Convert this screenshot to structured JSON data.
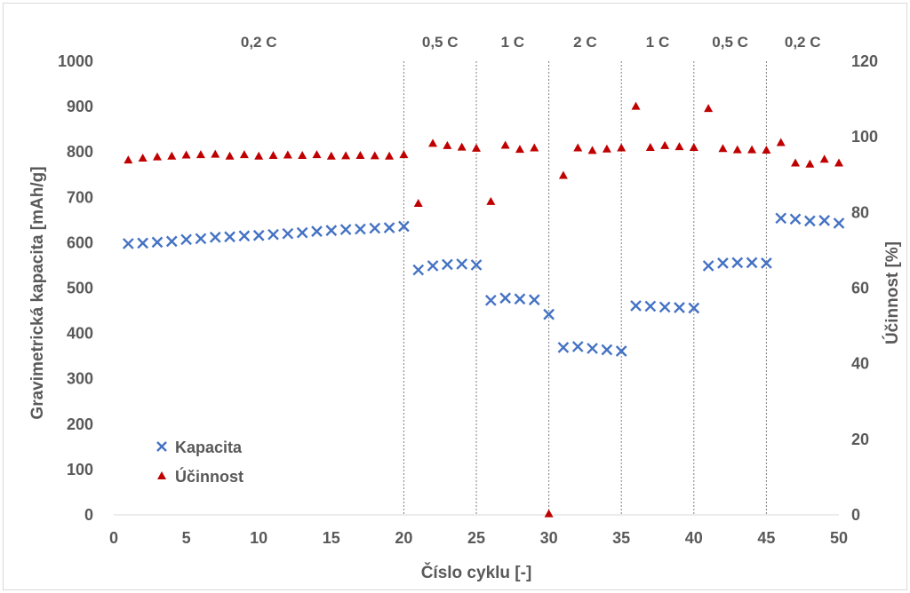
{
  "chart_data": {
    "type": "scatter",
    "title": "",
    "xlabel": "Číslo cyklu [-]",
    "ylabel": "Gravimetrická kapacita [mAh/g]",
    "y2label": "Účinnost [%]",
    "xlim": [
      0,
      50
    ],
    "ylim": [
      0,
      1000
    ],
    "y2lim": [
      0,
      120
    ],
    "xticks": [
      0,
      5,
      10,
      15,
      20,
      25,
      30,
      35,
      40,
      45,
      50
    ],
    "yticks": [
      0,
      100,
      200,
      300,
      400,
      500,
      600,
      700,
      800,
      900,
      1000
    ],
    "y2ticks": [
      0,
      20,
      40,
      60,
      80,
      100,
      120
    ],
    "grid": false,
    "legend_position": "bottom-left",
    "regions": [
      {
        "label": "0,2 C",
        "from": 0,
        "to": 20
      },
      {
        "label": "0,5 C",
        "from": 20,
        "to": 25
      },
      {
        "label": "1 C",
        "from": 25,
        "to": 30
      },
      {
        "label": "2 C",
        "from": 30,
        "to": 35
      },
      {
        "label": "1 C",
        "from": 35,
        "to": 40
      },
      {
        "label": "0,5 C",
        "from": 40,
        "to": 45
      },
      {
        "label": "0,2 C",
        "from": 45,
        "to": 50
      }
    ],
    "series": [
      {
        "name": "Kapacita",
        "axis": "left",
        "marker": "x",
        "color": "#4472c4",
        "x": [
          1,
          2,
          3,
          4,
          5,
          6,
          7,
          8,
          9,
          10,
          11,
          12,
          13,
          14,
          15,
          16,
          17,
          18,
          19,
          20,
          21,
          22,
          23,
          24,
          25,
          26,
          27,
          28,
          29,
          30,
          31,
          32,
          33,
          34,
          35,
          36,
          37,
          38,
          39,
          40,
          41,
          42,
          43,
          44,
          45,
          46,
          47,
          48,
          49,
          50
        ],
        "y": [
          598,
          599,
          601,
          603,
          607,
          609,
          612,
          613,
          615,
          616,
          618,
          620,
          622,
          625,
          627,
          629,
          630,
          632,
          633,
          636,
          540,
          549,
          552,
          553,
          551,
          473,
          478,
          476,
          474,
          442,
          369,
          371,
          367,
          364,
          361,
          461,
          460,
          458,
          457,
          456,
          549,
          555,
          556,
          556,
          555,
          654,
          652,
          648,
          649,
          643
        ]
      },
      {
        "name": "Účinnost",
        "axis": "right",
        "marker": "triangle",
        "color": "#c00000",
        "x": [
          1,
          2,
          3,
          4,
          5,
          6,
          7,
          8,
          9,
          10,
          11,
          12,
          13,
          14,
          15,
          16,
          17,
          18,
          19,
          20,
          21,
          22,
          23,
          24,
          25,
          26,
          27,
          28,
          29,
          30,
          31,
          32,
          33,
          34,
          35,
          36,
          37,
          38,
          39,
          40,
          41,
          42,
          43,
          44,
          45,
          46,
          47,
          48,
          49,
          50
        ],
        "y": [
          93.8,
          94.3,
          94.6,
          94.8,
          95.1,
          95.2,
          95.3,
          94.8,
          95.2,
          94.8,
          95.0,
          95.1,
          95.0,
          95.2,
          94.8,
          94.9,
          95.0,
          94.9,
          94.8,
          95.2,
          82.3,
          98.2,
          97.6,
          97.2,
          96.9,
          82.8,
          97.7,
          96.6,
          97.0,
          0.2,
          89.7,
          97.0,
          96.3,
          96.7,
          97.0,
          108.0,
          97.1,
          97.6,
          97.3,
          97.1,
          107.4,
          96.8,
          96.5,
          96.5,
          96.4,
          98.4,
          93.0,
          92.7,
          94.0,
          93.0
        ]
      }
    ]
  }
}
